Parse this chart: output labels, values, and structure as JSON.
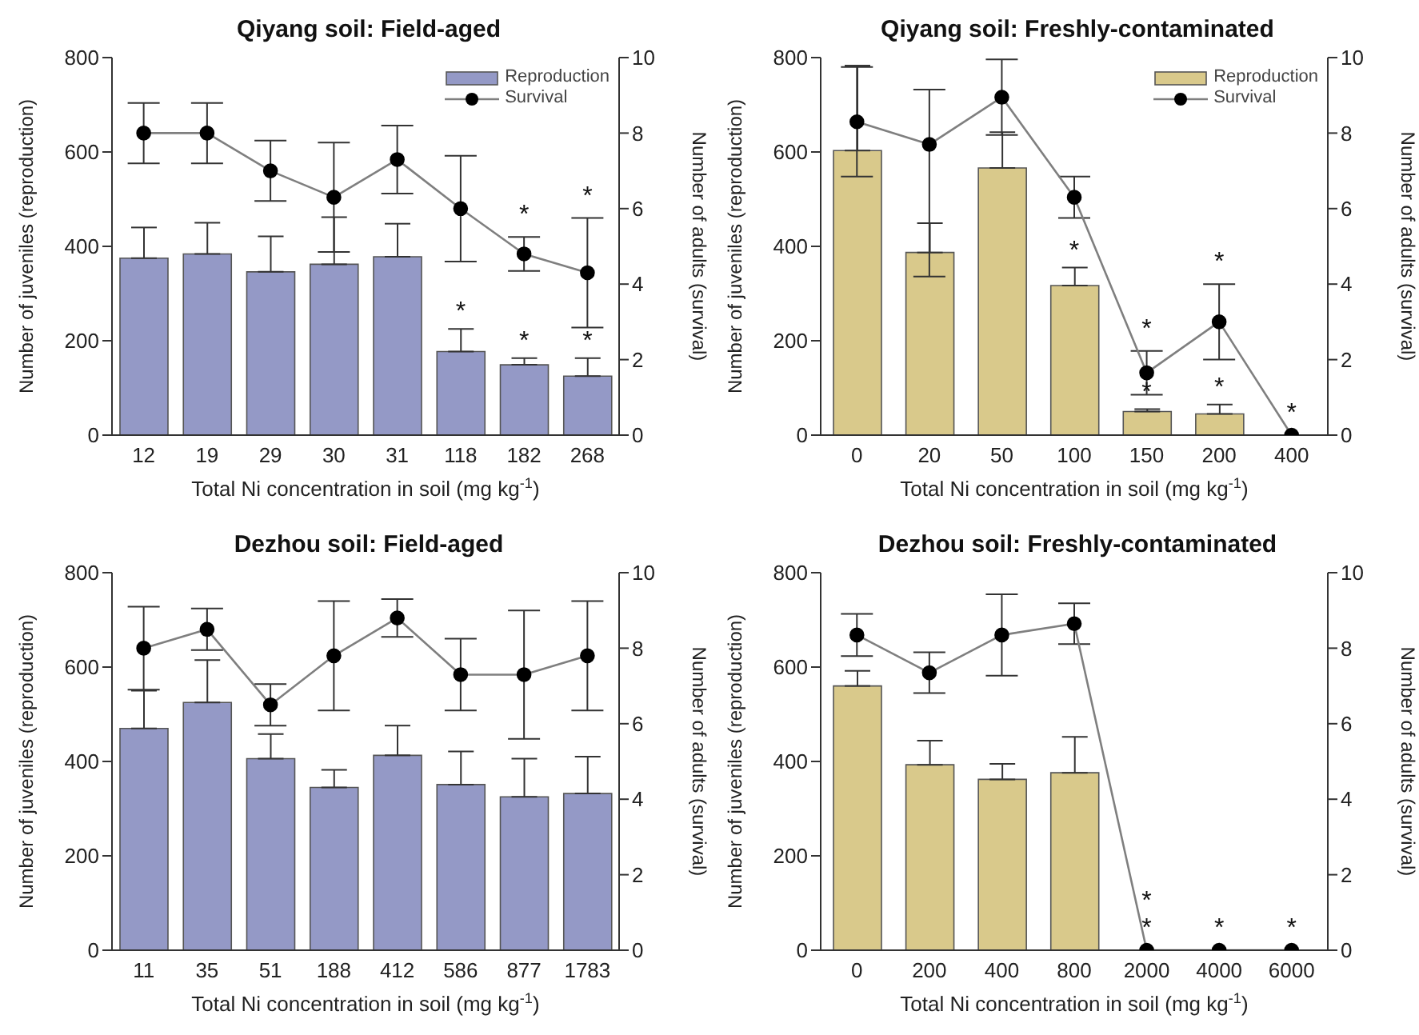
{
  "chart_data": [
    {
      "type": "bar",
      "title": "Qiyang soil: Field-aged",
      "xlabel": "Total Ni concentration in soil (mg kg$^{-1}$)",
      "ylabel": "Number of juveniles (reproduction)",
      "y2label": "Number of adults (survival)",
      "categories": [
        "12",
        "19",
        "29",
        "30",
        "31",
        "118",
        "182",
        "268"
      ],
      "series": [
        {
          "name": "Reproduction",
          "color": "#9499c6",
          "values": [
            375,
            384,
            346,
            362,
            378,
            177,
            149,
            125
          ],
          "errors": [
            [
              375,
              440
            ],
            [
              384,
              450
            ],
            [
              346,
              421
            ],
            [
              362,
              462
            ],
            [
              378,
              448
            ],
            [
              177,
              225
            ],
            [
              149,
              163
            ],
            [
              125,
              163
            ]
          ],
          "value_labels": [
            null,
            null,
            null,
            null,
            null,
            "*",
            "*",
            "*"
          ]
        },
        {
          "name": "Survival",
          "type": "line",
          "axis": "y2",
          "color": "#7f7f7f",
          "marker": "circle",
          "values": [
            8.0,
            8.0,
            7.0,
            6.3,
            7.3,
            6.0,
            4.8,
            4.3
          ],
          "errors": [
            0.8,
            0.8,
            0.8,
            1.45,
            0.9,
            1.4,
            0.45,
            1.45
          ],
          "value_labels": [
            null,
            null,
            null,
            null,
            null,
            null,
            "*",
            "*"
          ]
        }
      ],
      "ylim": [
        0,
        800
      ],
      "yticks": [
        0,
        200,
        400,
        600,
        800
      ],
      "y2lim": [
        0,
        10
      ],
      "y2ticks": [
        0,
        2,
        4,
        6,
        8,
        10
      ],
      "legend": "top right"
    },
    {
      "type": "bar",
      "title": "Qiyang soil: Freshly-contaminated",
      "xlabel": "Total Ni concentration in soil (mg kg$^{-1}$)",
      "ylabel": "Number of juveniles (reproduction)",
      "y2label": "Number of adults (survival)",
      "categories": [
        "0",
        "20",
        "50",
        "100",
        "150",
        "200",
        "400"
      ],
      "series": [
        {
          "name": "Reproduction",
          "color": "#d9c98b",
          "values": [
            603,
            387,
            566,
            317,
            50,
            45,
            0
          ],
          "errors": [
            [
              603,
              783
            ],
            [
              387,
              449
            ],
            [
              566,
              642
            ],
            [
              317,
              355
            ],
            [
              50,
              55
            ],
            [
              45,
              65
            ],
            null
          ],
          "value_labels": [
            null,
            null,
            null,
            "*",
            "*",
            "*",
            null
          ]
        },
        {
          "name": "Survival",
          "type": "line",
          "axis": "y2",
          "color": "#7f7f7f",
          "marker": "circle",
          "values": [
            8.3,
            7.7,
            8.95,
            6.3,
            1.65,
            3.0,
            0
          ],
          "errors": [
            1.45,
            [
              4.2,
              9.15
            ],
            1.0,
            0.55,
            0.58,
            1.0,
            null
          ],
          "value_labels": [
            null,
            null,
            null,
            null,
            "*",
            "*",
            "*"
          ]
        }
      ],
      "ylim": [
        0,
        800
      ],
      "yticks": [
        0,
        200,
        400,
        600,
        800
      ],
      "y2lim": [
        0,
        10
      ],
      "y2ticks": [
        0,
        2,
        4,
        6,
        8,
        10
      ],
      "legend": "top right"
    },
    {
      "type": "bar",
      "title": "Dezhou soil: Field-aged",
      "xlabel": "Total Ni concentration in soil (mg kg$^{-1}$)",
      "ylabel": "Number of juveniles (reproduction)",
      "y2label": "Number of adults (survival)",
      "categories": [
        "11",
        "35",
        "51",
        "188",
        "412",
        "586",
        "877",
        "1783"
      ],
      "series": [
        {
          "color": "#9499c6",
          "values": [
            470,
            525,
            406,
            345,
            413,
            351,
            325,
            332
          ],
          "errors": [
            [
              470,
              550
            ],
            [
              525,
              615
            ],
            [
              406,
              458
            ],
            [
              345,
              382
            ],
            [
              413,
              476
            ],
            [
              351,
              421
            ],
            [
              325,
              406
            ],
            [
              332,
              410
            ]
          ]
        },
        {
          "type": "line",
          "axis": "y2",
          "color": "#7f7f7f",
          "marker": "circle",
          "values": [
            8.0,
            8.5,
            6.5,
            7.8,
            8.8,
            7.3,
            7.3,
            7.8
          ],
          "errors": [
            1.1,
            0.55,
            0.55,
            1.45,
            0.5,
            0.95,
            1.7,
            1.45
          ]
        }
      ],
      "ylim": [
        0,
        800
      ],
      "yticks": [
        0,
        200,
        400,
        600,
        800
      ],
      "y2lim": [
        0,
        10
      ],
      "y2ticks": [
        0,
        2,
        4,
        6,
        8,
        10
      ]
    },
    {
      "type": "bar",
      "title": "Dezhou soil: Freshly-contaminated",
      "xlabel": "Total Ni concentration in soil (mg kg$^{-1}$)",
      "ylabel": "Number of juveniles (reproduction)",
      "y2label": "Number of adults (survival)",
      "categories": [
        "0",
        "200",
        "400",
        "800",
        "2000",
        "4000",
        "6000"
      ],
      "series": [
        {
          "color": "#d9c98b",
          "values": [
            560,
            393,
            362,
            376,
            0,
            0,
            0
          ],
          "errors": [
            [
              560,
              592
            ],
            [
              393,
              444
            ],
            [
              362,
              395
            ],
            [
              376,
              452
            ],
            null,
            null,
            null
          ],
          "value_labels": [
            null,
            null,
            null,
            null,
            "*",
            null,
            null
          ]
        },
        {
          "type": "line",
          "axis": "y2",
          "color": "#7f7f7f",
          "marker": "circle",
          "values": [
            8.35,
            7.35,
            8.35,
            8.65,
            0,
            0,
            0
          ],
          "errors": [
            0.56,
            0.54,
            1.08,
            0.54,
            null,
            null,
            null
          ],
          "value_labels": [
            null,
            null,
            null,
            null,
            "*",
            "*",
            "*"
          ]
        }
      ],
      "ylim": [
        0,
        800
      ],
      "yticks": [
        0,
        200,
        400,
        600,
        800
      ],
      "y2lim": [
        0,
        10
      ],
      "y2ticks": [
        0,
        2,
        4,
        6,
        8,
        10
      ]
    }
  ]
}
